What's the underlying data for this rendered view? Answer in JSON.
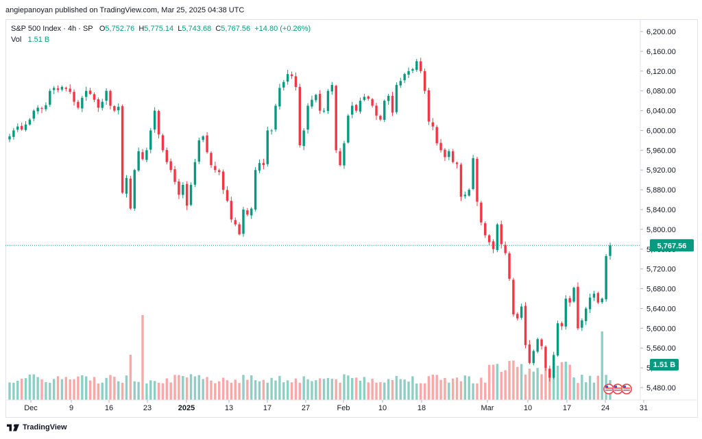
{
  "header": {
    "published": "angiepanoyan published on TradingView.com, Mar 25, 2025 04:38 UTC"
  },
  "legend": {
    "symbol": "S&P 500 Index · 4h · SP",
    "open_label": "O",
    "open": "5,752.76",
    "high_label": "H",
    "high": "5,775.14",
    "low_label": "L",
    "low": "5,743.68",
    "close_label": "C",
    "close": "5,767.56",
    "change": "+14.80 (+0.26%)",
    "vol_label": "Vol",
    "vol": "1.51 B"
  },
  "price_tag": "5,767.56",
  "volume_tag": "1.51 B",
  "footer": {
    "brand": "TradingView"
  },
  "colors": {
    "up": "#089981",
    "down": "#f23645",
    "vol_up": "#8dcfc4",
    "vol_down": "#f7a9a7",
    "last_line": "#089981"
  },
  "chart_data": {
    "type": "candlestick",
    "interval": "4h",
    "y_ticks": [
      "6,200.00",
      "6,160.00",
      "6,120.00",
      "6,080.00",
      "6,040.00",
      "6,000.00",
      "5,960.00",
      "5,920.00",
      "5,880.00",
      "5,840.00",
      "5,800.00",
      "5,760.00",
      "5,720.00",
      "5,680.00",
      "5,640.00",
      "5,600.00",
      "5,560.00",
      "5,520.00",
      "5,480.00"
    ],
    "y_tick_values": [
      6200,
      6160,
      6120,
      6080,
      6040,
      6000,
      5960,
      5920,
      5880,
      5840,
      5800,
      5760,
      5720,
      5680,
      5640,
      5600,
      5560,
      5520,
      5480
    ],
    "ylim": [
      5455,
      6225
    ],
    "last_price": 5767.56,
    "x_labels": [
      {
        "label": "Dec",
        "bold": false
      },
      {
        "label": "9",
        "bold": false
      },
      {
        "label": "16",
        "bold": false
      },
      {
        "label": "23",
        "bold": false
      },
      {
        "label": "2025",
        "bold": true
      },
      {
        "label": "13",
        "bold": false
      },
      {
        "label": "17",
        "bold": false
      },
      {
        "label": "27",
        "bold": false
      },
      {
        "label": "Feb",
        "bold": false
      },
      {
        "label": "10",
        "bold": false
      },
      {
        "label": "18",
        "bold": false
      },
      {
        "label": "Mar",
        "bold": false
      },
      {
        "label": "10",
        "bold": false
      },
      {
        "label": "17",
        "bold": false
      },
      {
        "label": "24",
        "bold": false
      },
      {
        "label": "31",
        "bold": false
      }
    ],
    "closes": [
      5988,
      6000,
      6008,
      6002,
      6012,
      6022,
      6040,
      6046,
      6044,
      6051,
      6080,
      6086,
      6082,
      6088,
      6084,
      6078,
      6058,
      6046,
      6066,
      6080,
      6074,
      6062,
      6046,
      6058,
      6080,
      6050,
      6040,
      6048,
      5874,
      5904,
      5842,
      5920,
      5958,
      5942,
      5960,
      6000,
      6040,
      5992,
      5960,
      5936,
      5920,
      5896,
      5870,
      5890,
      5848,
      5890,
      5936,
      5980,
      5988,
      5956,
      5930,
      5920,
      5916,
      5880,
      5858,
      5820,
      5810,
      5790,
      5840,
      5830,
      5842,
      5920,
      5934,
      5930,
      6000,
      6000,
      6050,
      6086,
      6098,
      6114,
      6110,
      6088,
      5970,
      6000,
      6050,
      6062,
      6072,
      6040,
      6040,
      6080,
      6092,
      5960,
      5930,
      5974,
      6030,
      6050,
      6040,
      6060,
      6068,
      6064,
      6050,
      6030,
      6022,
      6060,
      6070,
      6036,
      6092,
      6100,
      6114,
      6120,
      6124,
      6140,
      6120,
      6080,
      6018,
      6008,
      5974,
      5960,
      5946,
      5958,
      5936,
      5932,
      5866,
      5870,
      5880,
      5944,
      5856,
      5814,
      5788,
      5774,
      5760,
      5810,
      5770,
      5752,
      5700,
      5628,
      5620,
      5644,
      5566,
      5530,
      5554,
      5578,
      5564,
      5520,
      5500,
      5546,
      5610,
      5604,
      5660,
      5652,
      5682,
      5600,
      5616,
      5640,
      5662,
      5670,
      5652,
      5660,
      5746,
      5767.56
    ],
    "volume_scale": "B",
    "volume_last": 1.51
  }
}
